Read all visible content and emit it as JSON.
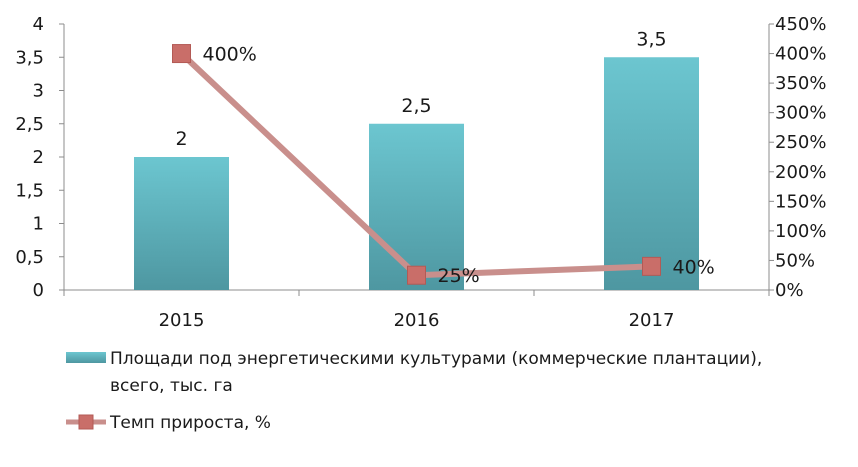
{
  "chart_data": {
    "type": "bar+line",
    "categories": [
      "2015",
      "2016",
      "2017"
    ],
    "series": [
      {
        "name": "Площади под энергетическими культурами (коммерческие плантации), всего, тыс. га",
        "type": "bar",
        "axis": "left",
        "values": [
          2,
          2.5,
          3.5
        ],
        "labels": [
          "2",
          "2,5",
          "3,5"
        ],
        "color": "#5fb8c4"
      },
      {
        "name": "Темп прироста, %",
        "type": "line",
        "axis": "right",
        "values": [
          400,
          25,
          40
        ],
        "labels": [
          "400%",
          "25%",
          "40%"
        ],
        "color": "#c98f8c",
        "marker_color": "#c96e69"
      }
    ],
    "y_left": {
      "min": 0,
      "max": 4,
      "ticks": [
        "0",
        "0,5",
        "1",
        "1,5",
        "2",
        "2,5",
        "3",
        "3,5",
        "4"
      ]
    },
    "y_right": {
      "min": 0,
      "max": 450,
      "ticks": [
        "0%",
        "50%",
        "100%",
        "150%",
        "200%",
        "250%",
        "300%",
        "350%",
        "400%",
        "450%"
      ]
    },
    "legend": {
      "placement": "bottom",
      "bar_lines": [
        "Площади под энергетическими культурами (коммерческие плантации),",
        "всего, тыс. га"
      ],
      "line_label": "Темп прироста, %"
    },
    "grid": false
  }
}
